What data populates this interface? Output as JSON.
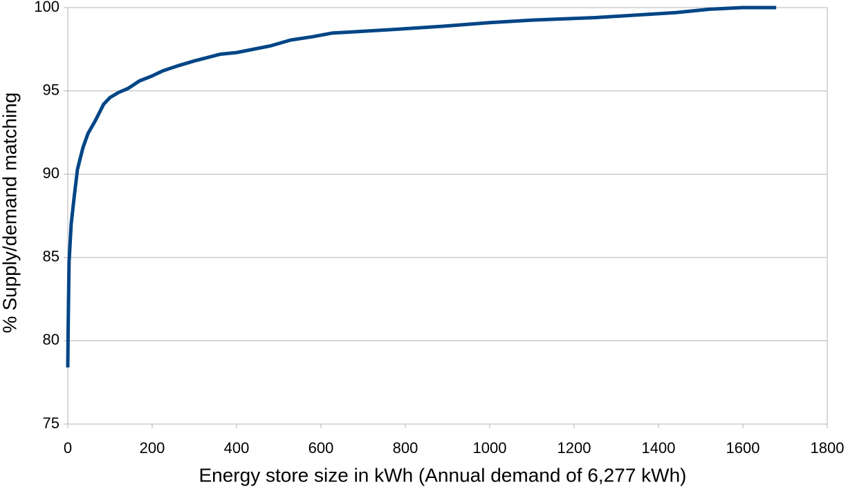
{
  "chart_data": {
    "type": "line",
    "x_label": "Energy store size in kWh (Annual demand of 6,277 kWh)",
    "y_label": "% Supply/demand matching",
    "x": [
      0,
      1,
      3,
      8,
      15,
      23,
      36,
      48,
      65,
      85,
      100,
      120,
      143,
      170,
      200,
      225,
      260,
      300,
      361,
      400,
      480,
      528,
      580,
      626,
      680,
      780,
      900,
      1000,
      1100,
      1250,
      1441,
      1520,
      1599,
      1679
    ],
    "series": [
      {
        "name": "Supply/demand matching",
        "color": "#004586",
        "values": [
          78.4,
          81,
          84.7,
          87,
          88.6,
          90.3,
          91.6,
          92.45,
          93.2,
          94.2,
          94.6,
          94.9,
          95.15,
          95.6,
          95.9,
          96.2,
          96.5,
          96.8,
          97.2,
          97.3,
          97.7,
          98.05,
          98.25,
          98.47,
          98.55,
          98.7,
          98.9,
          99.1,
          99.25,
          99.4,
          99.7,
          99.9,
          100,
          100
        ]
      }
    ],
    "xlim": [
      0,
      1800
    ],
    "xticks": [
      0,
      200,
      400,
      600,
      800,
      1000,
      1200,
      1400,
      1600,
      1800
    ],
    "ylim": [
      75,
      100
    ],
    "yticks": [
      75,
      80,
      85,
      90,
      95,
      100
    ],
    "grid": true
  }
}
